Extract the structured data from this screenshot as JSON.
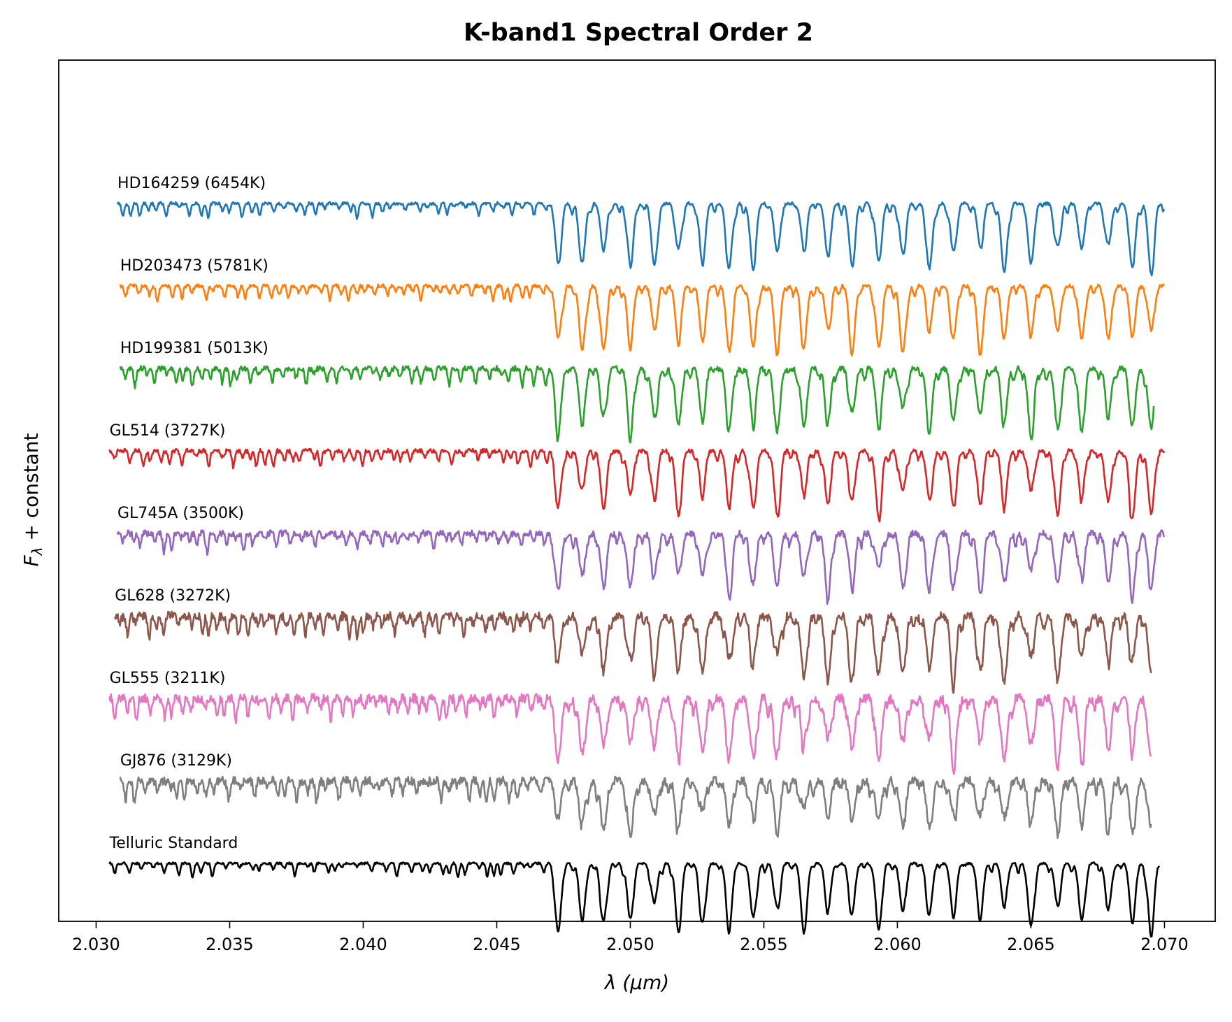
{
  "chart_data": {
    "type": "line",
    "title": "K-band1 Spectral Order 2",
    "xlabel": "λ (μm)",
    "ylabel_main": "F",
    "ylabel_sub": "λ",
    "ylabel_rest": " + constant",
    "xlim": [
      2.0286,
      2.0719
    ],
    "x_ticks": [
      "2.030",
      "2.035",
      "2.040",
      "2.045",
      "2.050",
      "2.055",
      "2.060",
      "2.065",
      "2.070"
    ],
    "x_tick_values": [
      2.03,
      2.035,
      2.04,
      2.045,
      2.05,
      2.055,
      2.06,
      2.065,
      2.07
    ],
    "y_ticks": [],
    "grid": false,
    "legend": "none",
    "telluric_lines_um": [
      2.0473,
      2.0482,
      2.049,
      2.05,
      2.0509,
      2.0518,
      2.0527,
      2.0537,
      2.0546,
      2.0555,
      2.0565,
      2.0574,
      2.0583,
      2.0593,
      2.0602,
      2.0612,
      2.0621,
      2.0631,
      2.064,
      2.065,
      2.066,
      2.0669,
      2.0679,
      2.0688,
      2.0695
    ],
    "series": [
      {
        "name": "HD164259 (6454K)",
        "color": "#1f77b4",
        "x_range": [
          2.0308,
          2.07
        ],
        "offset": 8,
        "depth_scale": 0.85,
        "noise": 0.1
      },
      {
        "name": "HD203473 (5781K)",
        "color": "#ff7f0e",
        "x_range": [
          2.0309,
          2.07
        ],
        "offset": 7,
        "depth_scale": 0.85,
        "noise": 0.12
      },
      {
        "name": "HD199381 (5013K)",
        "color": "#2ca02c",
        "x_range": [
          2.0309,
          2.0696
        ],
        "offset": 6,
        "depth_scale": 0.8,
        "noise": 0.18
      },
      {
        "name": "GL514 (3727K)",
        "color": "#d62728",
        "x_range": [
          2.0305,
          2.07
        ],
        "offset": 5,
        "depth_scale": 0.8,
        "noise": 0.15
      },
      {
        "name": "GL745A (3500K)",
        "color": "#9467bd",
        "x_range": [
          2.0308,
          2.07
        ],
        "offset": 4,
        "depth_scale": 0.75,
        "noise": 0.22
      },
      {
        "name": "GL628 (3272K)",
        "color": "#8c564b",
        "x_range": [
          2.0307,
          2.0695
        ],
        "offset": 3,
        "depth_scale": 0.8,
        "noise": 0.3
      },
      {
        "name": "GL555 (3211K)",
        "color": "#e377c2",
        "x_range": [
          2.0305,
          2.0695
        ],
        "offset": 2,
        "depth_scale": 0.8,
        "noise": 0.32
      },
      {
        "name": "GJ876 (3129K)",
        "color": "#7f7f7f",
        "x_range": [
          2.0309,
          2.0695
        ],
        "offset": 1,
        "depth_scale": 0.6,
        "noise": 0.3
      },
      {
        "name": "Telluric Standard",
        "color": "#000000",
        "x_range": [
          2.0305,
          2.0698
        ],
        "offset": 0,
        "depth_scale": 0.85,
        "noise": 0.08
      }
    ]
  }
}
